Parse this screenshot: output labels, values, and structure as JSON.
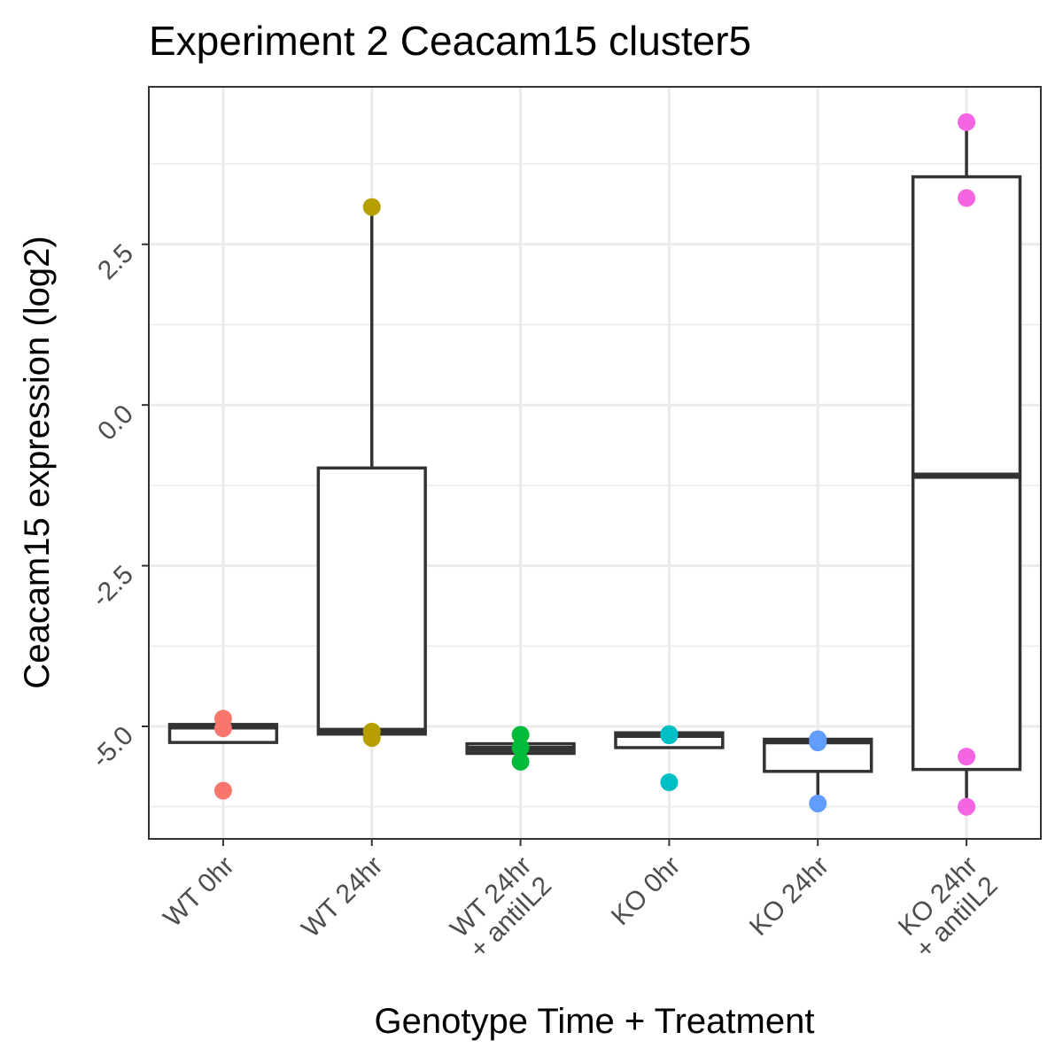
{
  "chart_data": {
    "type": "box",
    "title": "Experiment 2 Ceacam15 cluster5",
    "xlabel": "Genotype Time + Treatment",
    "ylabel": "Ceacam15 expression (log2)",
    "ylim": [
      -6.75,
      4.95
    ],
    "yticks": [
      -5.0,
      -2.5,
      0.0,
      2.5
    ],
    "ytick_labels": [
      "-5.0",
      "-2.5",
      "0.0",
      "2.5"
    ],
    "grid": true,
    "categories": [
      {
        "label_lines": [
          "WT 0hr"
        ],
        "color": "#F8766D",
        "box": {
          "q1": -5.25,
          "median": -5.0,
          "q3": -4.97,
          "whisker_low": -5.25,
          "whisker_high": -4.97
        },
        "points": [
          -4.88,
          -5.03,
          -6.0
        ]
      },
      {
        "label_lines": [
          "WT 24hr"
        ],
        "color": "#B79F00",
        "box": {
          "q1": -5.12,
          "median": -5.07,
          "q3": -0.98,
          "whisker_low": -5.12,
          "whisker_high": 3.08
        },
        "points": [
          3.08,
          -5.08,
          -5.18
        ]
      },
      {
        "label_lines": [
          "WT 24hr",
          "+ antiIL2"
        ],
        "color": "#00BA38",
        "box": {
          "q1": -5.42,
          "median": -5.35,
          "q3": -5.27,
          "whisker_low": -5.42,
          "whisker_high": -5.27
        },
        "points": [
          -5.13,
          -5.33,
          -5.55
        ]
      },
      {
        "label_lines": [
          "KO 0hr"
        ],
        "color": "#00BFC4",
        "box": {
          "q1": -5.33,
          "median": -5.13,
          "q3": -5.1,
          "whisker_low": -5.33,
          "whisker_high": -5.1
        },
        "points": [
          -5.12,
          -5.14,
          -5.87
        ]
      },
      {
        "label_lines": [
          "KO 24hr"
        ],
        "color": "#619CFF",
        "box": {
          "q1": -5.7,
          "median": -5.23,
          "q3": -5.2,
          "whisker_low": -6.2,
          "whisker_high": -5.2
        },
        "points": [
          -5.2,
          -5.25,
          -6.2
        ]
      },
      {
        "label_lines": [
          "KO 24hr",
          "+ antiIL2"
        ],
        "color": "#F564E3",
        "box": {
          "q1": -5.67,
          "median": -1.1,
          "q3": 3.55,
          "whisker_low": -6.25,
          "whisker_high": 4.4
        },
        "points": [
          4.4,
          3.22,
          -5.47,
          -6.25
        ]
      }
    ]
  }
}
